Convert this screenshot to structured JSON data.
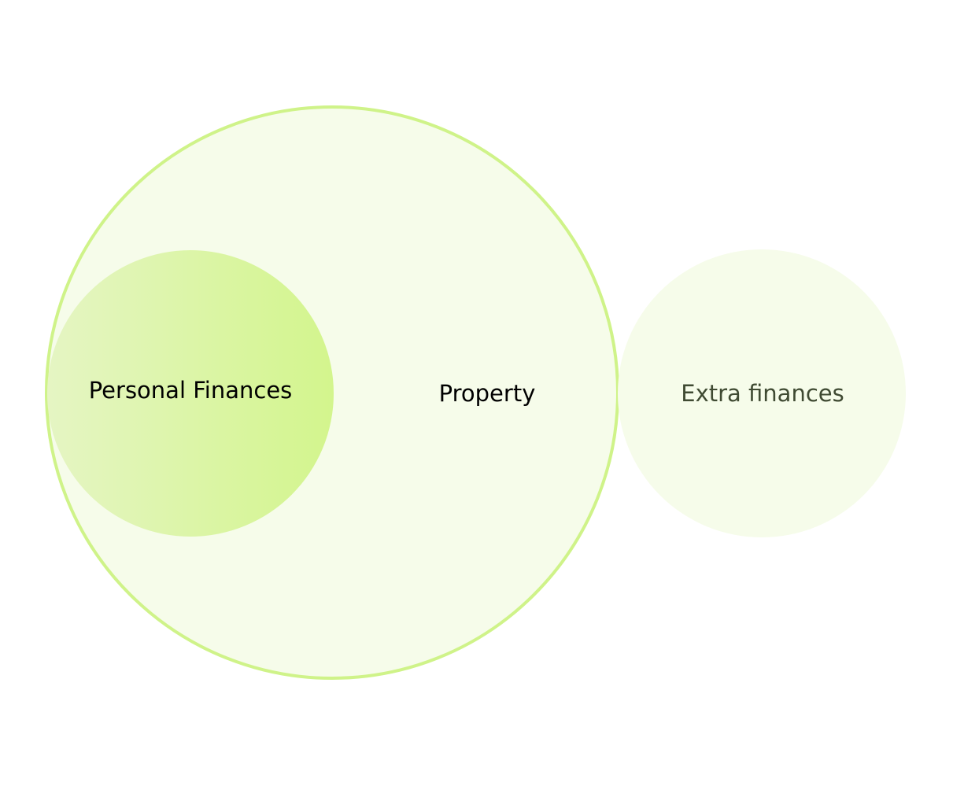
{
  "diagram": {
    "circles": [
      {
        "id": "property",
        "label": "Property",
        "fill": "#F6FCEA",
        "stroke": "#CFF389",
        "text_color": "#000000"
      },
      {
        "id": "personal-finances",
        "label": "Personal Finances",
        "fill_gradient": [
          "#E5F5C3",
          "#D3F58D"
        ],
        "text_color": "#000000"
      },
      {
        "id": "extra-finances",
        "label": "Extra finances",
        "fill": "#F6FCEA",
        "text_color": "#3F4A32"
      }
    ]
  }
}
